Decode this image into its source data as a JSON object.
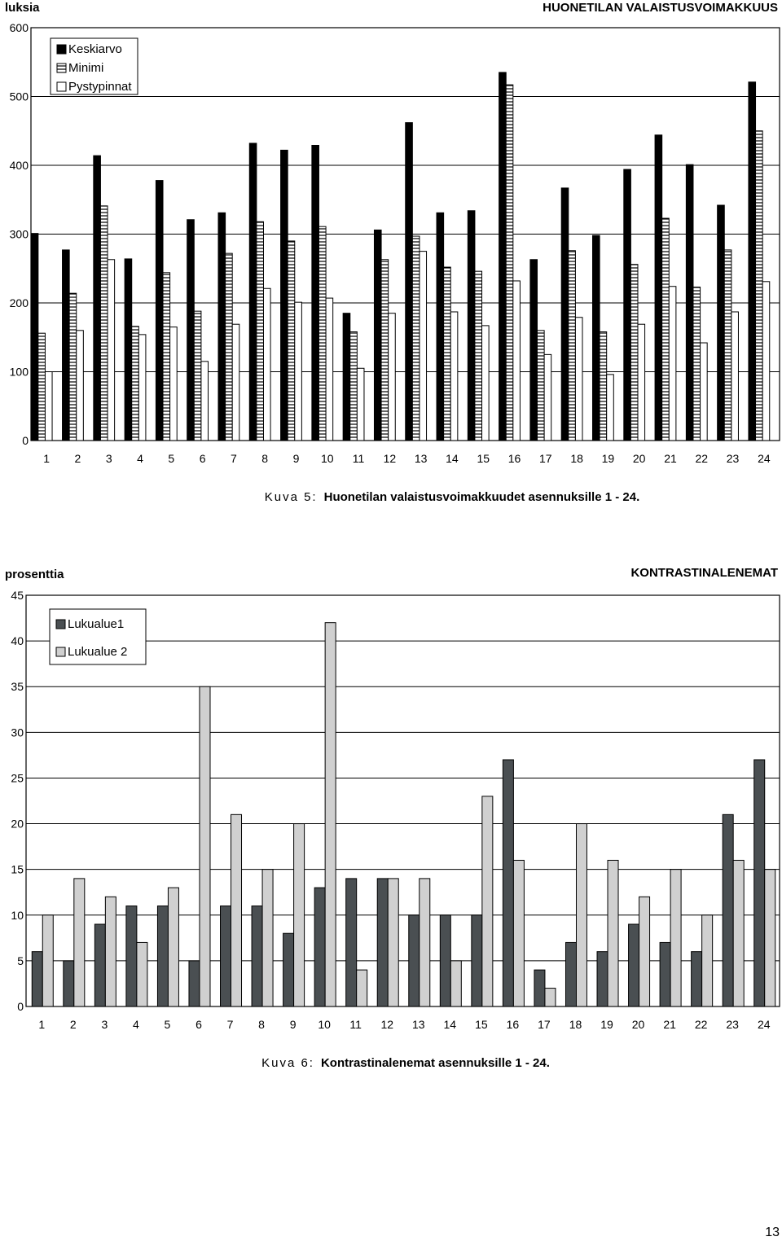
{
  "chart_data": [
    {
      "type": "bar",
      "title": "HUONETILAN VALAISTUSVOIMAKKUUS",
      "ylabel": "luksia",
      "xlabel": "",
      "ylim": [
        0,
        600
      ],
      "yticks": [
        0,
        100,
        200,
        300,
        400,
        500,
        600
      ],
      "grid": true,
      "legend_position": "top-left",
      "categories": [
        "1",
        "2",
        "3",
        "4",
        "5",
        "6",
        "7",
        "8",
        "9",
        "10",
        "11",
        "12",
        "13",
        "14",
        "15",
        "16",
        "17",
        "18",
        "19",
        "20",
        "21",
        "22",
        "23",
        "24"
      ],
      "series": [
        {
          "name": "Keskiarvo",
          "fill": "solid-black",
          "values": [
            301,
            277,
            414,
            264,
            378,
            321,
            331,
            432,
            422,
            429,
            185,
            306,
            462,
            331,
            334,
            535,
            263,
            367,
            298,
            394,
            444,
            401,
            342,
            521
          ]
        },
        {
          "name": "Minimi",
          "fill": "horizontal-hatch",
          "values": [
            156,
            214,
            341,
            166,
            244,
            188,
            272,
            318,
            290,
            311,
            158,
            263,
            297,
            252,
            246,
            517,
            160,
            276,
            158,
            256,
            323,
            223,
            277,
            450
          ]
        },
        {
          "name": "Pystypinnat",
          "fill": "white",
          "values": [
            100,
            160,
            263,
            154,
            165,
            115,
            169,
            221,
            201,
            207,
            105,
            185,
            275,
            187,
            167,
            232,
            125,
            179,
            96,
            169,
            224,
            142,
            187,
            231
          ]
        }
      ],
      "caption_label": "Kuva 5:",
      "caption_text": "Huonetilan valaistusvoimakkuudet asennuksille 1 - 24."
    },
    {
      "type": "bar",
      "title": "KONTRASTINALENEMAT",
      "ylabel": "prosenttia",
      "xlabel": "",
      "ylim": [
        0,
        45
      ],
      "yticks": [
        0,
        5,
        10,
        15,
        20,
        25,
        30,
        35,
        40,
        45
      ],
      "grid": true,
      "legend_position": "top-left",
      "categories": [
        "1",
        "2",
        "3",
        "4",
        "5",
        "6",
        "7",
        "8",
        "9",
        "10",
        "11",
        "12",
        "13",
        "14",
        "15",
        "16",
        "17",
        "18",
        "19",
        "20",
        "21",
        "22",
        "23",
        "24"
      ],
      "series": [
        {
          "name": "Lukualue1",
          "color": "#4a4f52",
          "values": [
            6,
            5,
            9,
            11,
            11,
            5,
            11,
            11,
            8,
            13,
            14,
            14,
            10,
            10,
            10,
            27,
            4,
            7,
            6,
            9,
            7,
            6,
            21,
            27
          ]
        },
        {
          "name": "Lukualue 2",
          "color": "#d0d0d0",
          "values": [
            10,
            14,
            12,
            7,
            13,
            35,
            21,
            15,
            20,
            42,
            4,
            14,
            14,
            5,
            23,
            16,
            2,
            20,
            16,
            12,
            15,
            10,
            16,
            15
          ]
        }
      ],
      "caption_label": "Kuva 6:",
      "caption_text": "Kontrastinalenemat asennuksille 1 - 24."
    }
  ],
  "page_number": "13"
}
